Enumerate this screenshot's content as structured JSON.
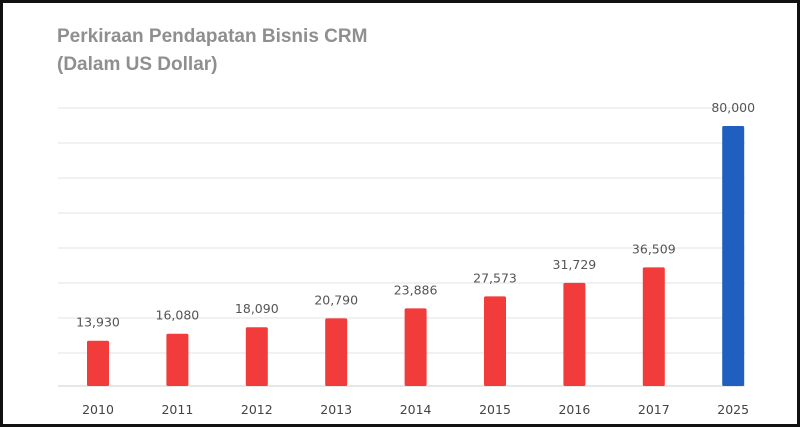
{
  "chart_data": {
    "type": "bar",
    "title": "Perkiraan Pendapatan Bisnis CRM",
    "subtitle": "(Dalam US Dollar)",
    "xlabel": "",
    "ylabel": "",
    "categories": [
      "2010",
      "2011",
      "2012",
      "2013",
      "2014",
      "2015",
      "2016",
      "2017",
      "2025"
    ],
    "values": [
      13930,
      16080,
      18090,
      20790,
      23886,
      27573,
      31729,
      36509,
      80000
    ],
    "value_labels": [
      "13,930",
      "16,080",
      "18,090",
      "20,790",
      "23,886",
      "27,573",
      "31,729",
      "36,509",
      "80,000"
    ],
    "ylim": [
      0,
      80000
    ],
    "grid": true,
    "legend": "none",
    "colors": {
      "actual": "#f23b3b",
      "forecast": "#1f5fbf",
      "grid": "#e3e3e3",
      "title": "#8f8f8f"
    },
    "highlight_index": 8
  }
}
